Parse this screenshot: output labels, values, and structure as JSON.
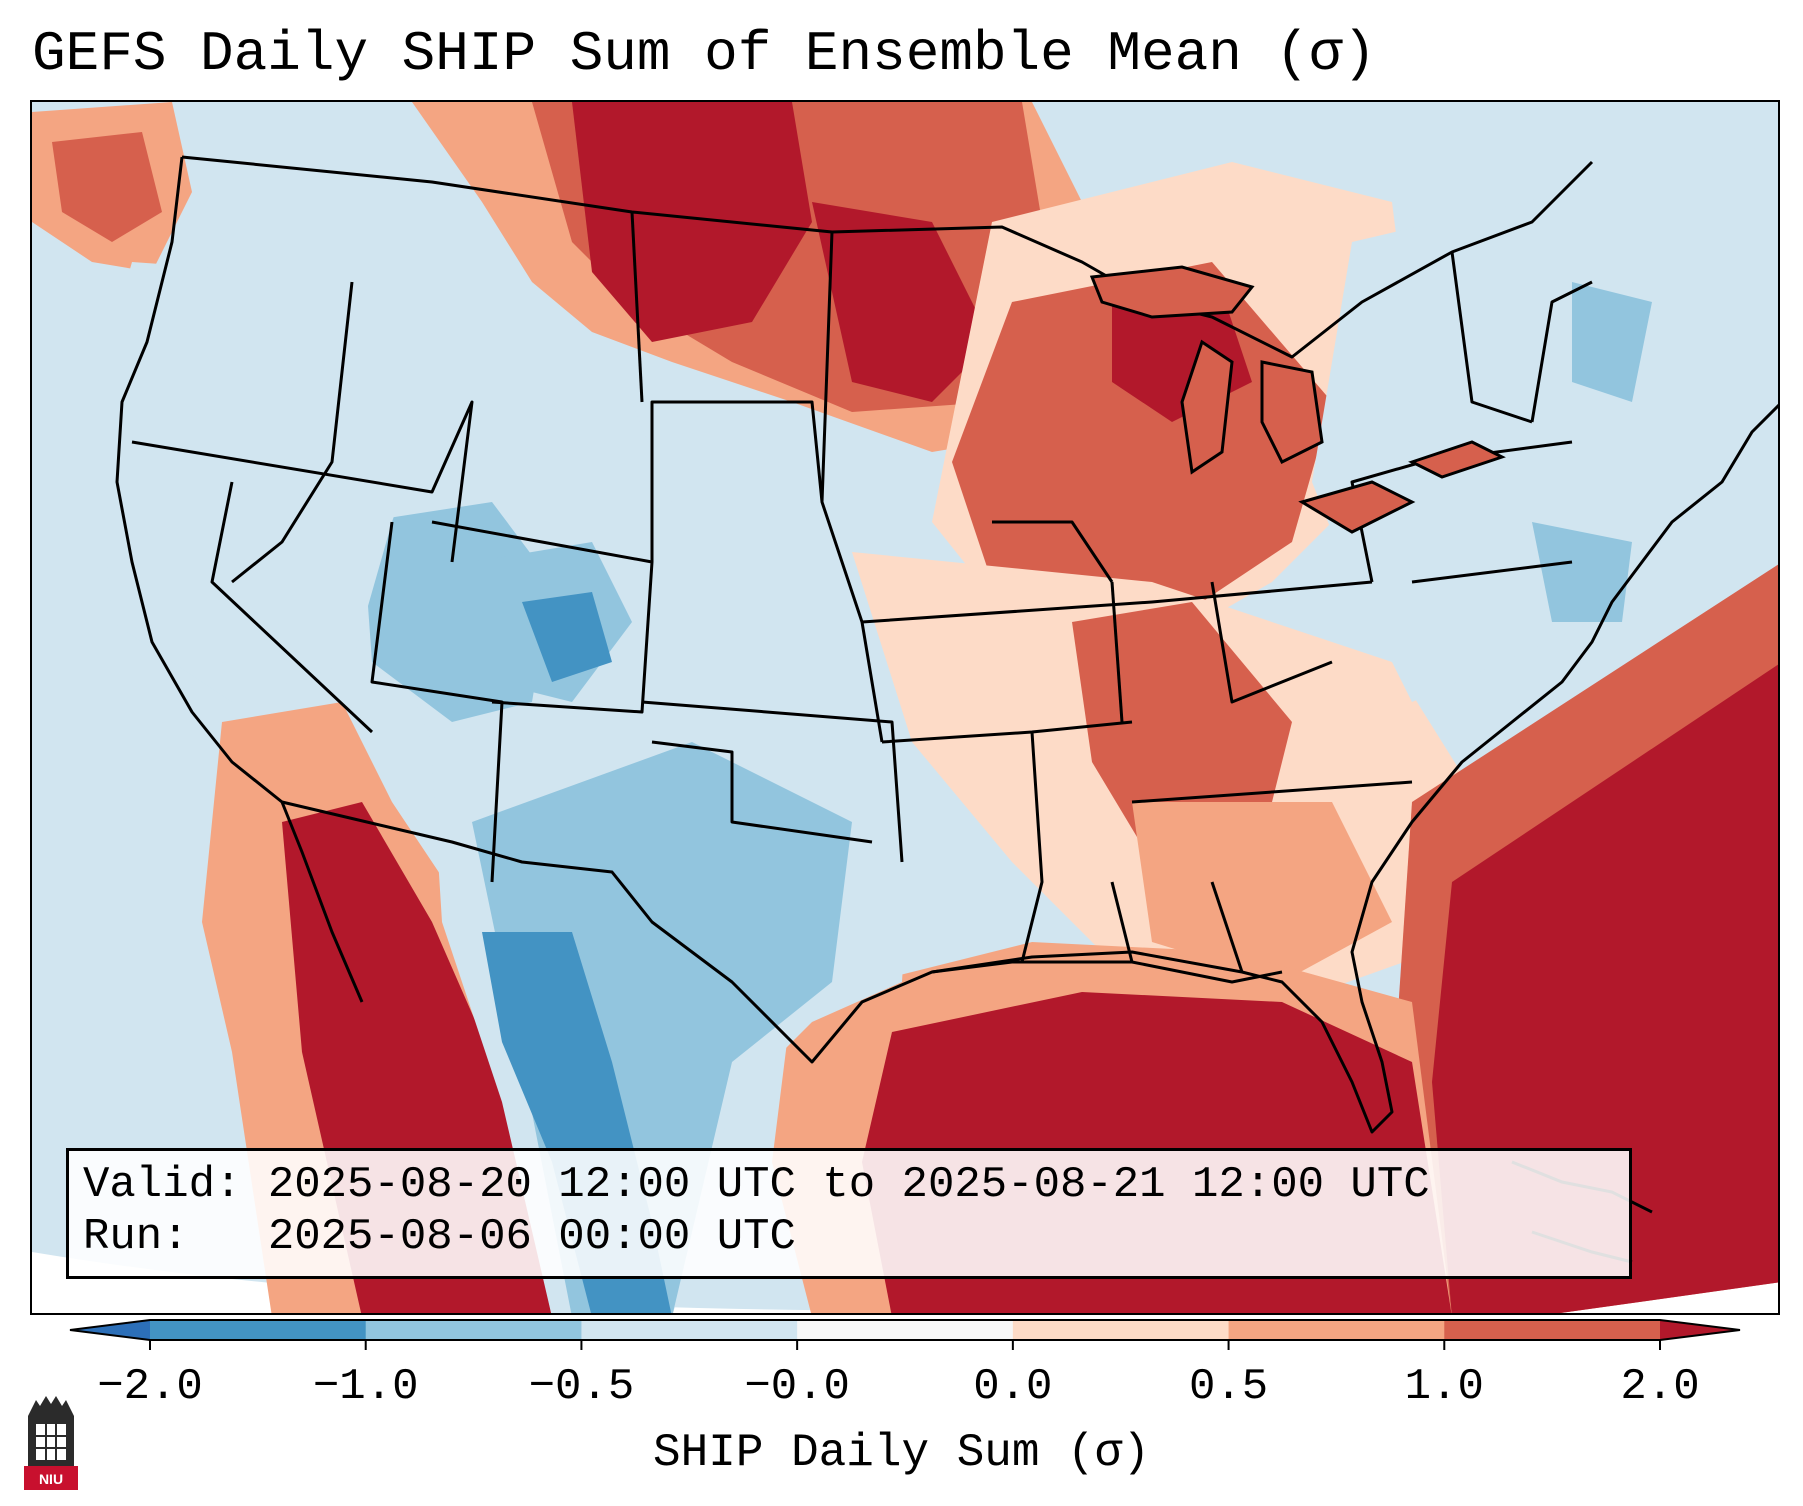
{
  "title": "GEFS Daily SHIP Sum of Ensemble Mean (σ)",
  "info": {
    "valid_label": "Valid:",
    "valid_value": "2025-08-20 12:00 UTC to 2025-08-21 12:00 UTC",
    "run_label": "Run:",
    "run_value": "2025-08-06 00:00 UTC"
  },
  "colorbar": {
    "label": "SHIP Daily Sum (σ)",
    "ticks": [
      "−2.0",
      "−1.0",
      "−0.5",
      "−0.0",
      "0.0",
      "0.5",
      "1.0",
      "2.0"
    ],
    "colors": {
      "under": "#2c6fb8",
      "bin_-2_-1": "#4393c3",
      "bin_-1_-0.5": "#92c5de",
      "bin_-0.5_0": "#d1e5f0",
      "bin_0_0": "#f7f7f7",
      "bin_0_0.5": "#fddbc7",
      "bin_0.5_1": "#f4a582",
      "bin_1_2": "#d6604d",
      "over": "#b2182b"
    }
  },
  "logo": {
    "text": "NIU",
    "icon": "niu-tower-icon"
  }
}
